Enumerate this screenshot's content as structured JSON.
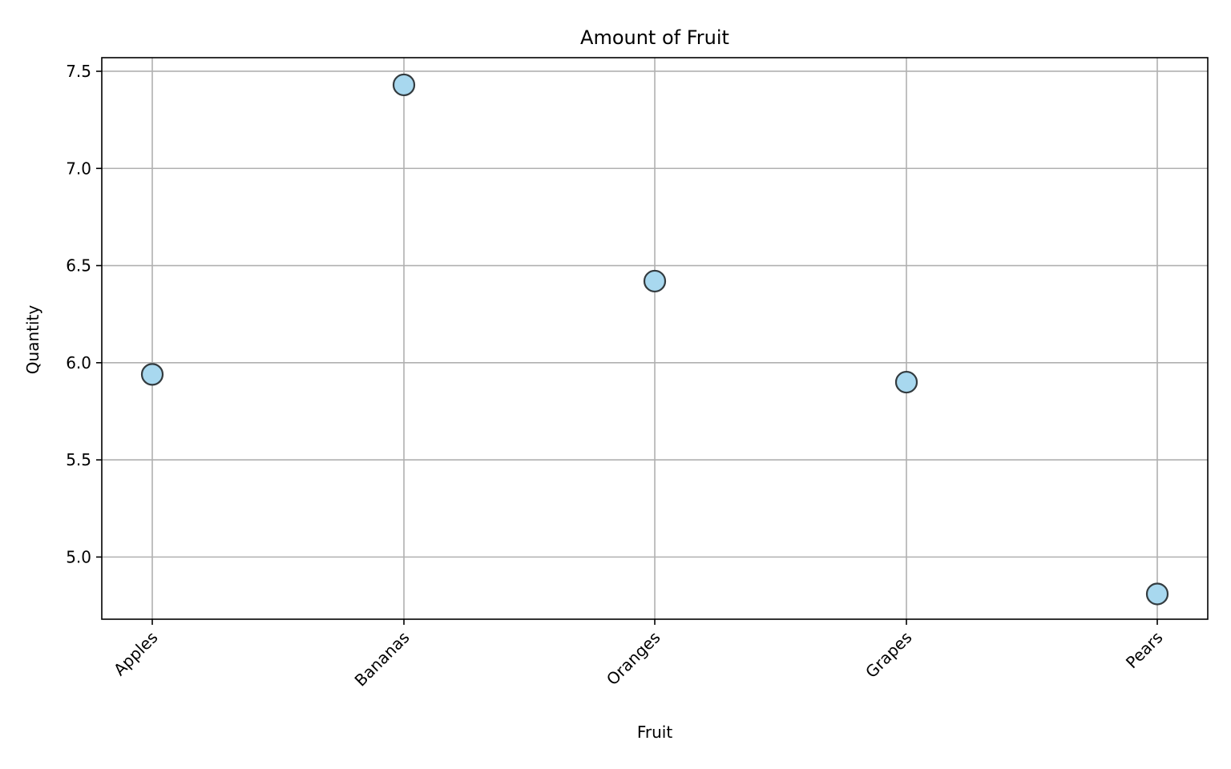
{
  "chart_data": {
    "type": "scatter",
    "title": "Amount of Fruit",
    "xlabel": "Fruit",
    "ylabel": "Quantity",
    "categories": [
      "Apples",
      "Bananas",
      "Oranges",
      "Grapes",
      "Pears"
    ],
    "values": [
      5.94,
      7.43,
      6.42,
      5.9,
      4.81
    ],
    "ylim": [
      4.68,
      7.57
    ],
    "yticks": [
      "5.0",
      "5.5",
      "6.0",
      "6.5",
      "7.0",
      "7.5"
    ],
    "grid": true,
    "marker_color": "#a8d8ef",
    "marker_edge_color": "#333b3f"
  }
}
